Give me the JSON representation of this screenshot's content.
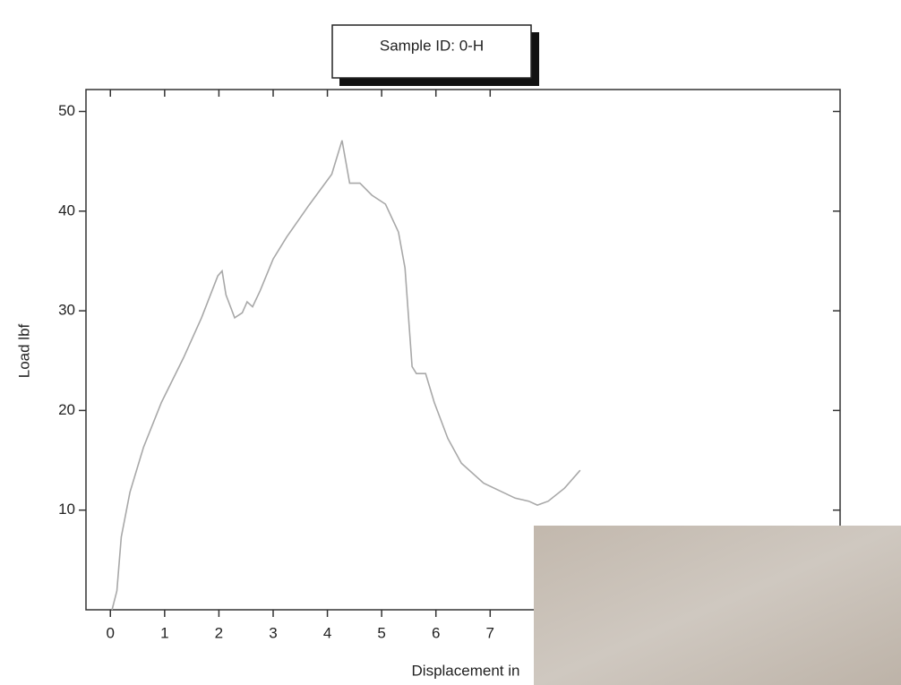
{
  "chart_data": {
    "type": "line",
    "title": "Sample ID: 0-H",
    "x_label": "Displacement in",
    "y_label": "Load lbf",
    "series": [
      {
        "name": "Sample ID: 0-H",
        "color": "#a8a8a8",
        "x": [
          0.03,
          0.12,
          0.2,
          0.36,
          0.61,
          0.94,
          1.35,
          1.68,
          1.98,
          2.06,
          2.13,
          2.29,
          2.43,
          2.52,
          2.62,
          2.76,
          3.0,
          3.25,
          3.66,
          4.08,
          4.27,
          4.41,
          4.6,
          4.82,
          5.07,
          5.31,
          5.43,
          5.56,
          5.64,
          5.81,
          5.97,
          6.22,
          6.47,
          6.88,
          7.46,
          7.71,
          7.87,
          8.07,
          8.37,
          8.66
        ],
        "values": [
          0,
          1.9,
          7.3,
          11.8,
          16.3,
          20.8,
          25.3,
          29.3,
          33.5,
          34.0,
          31.6,
          29.3,
          29.8,
          30.9,
          30.4,
          32.0,
          35.2,
          37.4,
          40.6,
          43.7,
          47.1,
          42.8,
          42.8,
          41.6,
          40.7,
          37.9,
          34.3,
          24.4,
          23.7,
          23.7,
          20.8,
          17.2,
          14.7,
          12.7,
          11.2,
          10.9,
          10.5,
          10.9,
          12.2,
          14.0
        ]
      }
    ],
    "xlim": [
      -0.45,
      13.45
    ],
    "xticks": [
      0,
      1,
      2,
      3,
      4,
      5,
      6,
      7
    ],
    "ylim": [
      0,
      52.2
    ],
    "yticks": [
      10,
      20,
      30,
      40,
      50
    ]
  }
}
